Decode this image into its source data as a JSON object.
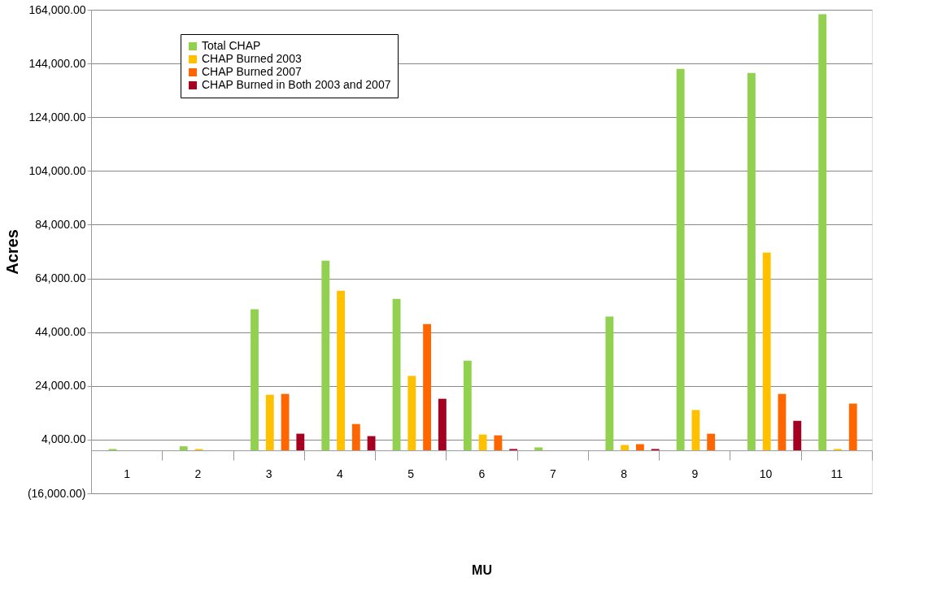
{
  "chart_data": {
    "type": "bar",
    "xlabel": "MU",
    "ylabel": "Acres",
    "categories": [
      "1",
      "2",
      "3",
      "4",
      "5",
      "6",
      "7",
      "8",
      "9",
      "10",
      "11"
    ],
    "series": [
      {
        "name": "Total CHAP",
        "color": "#92d050",
        "values": [
          500,
          1500,
          52500,
          70600,
          56400,
          33400,
          1100,
          49800,
          142000,
          140500,
          162300
        ]
      },
      {
        "name": "CHAP Burned 2003",
        "color": "#ffc000",
        "values": [
          null,
          500,
          20700,
          59400,
          27700,
          5900,
          null,
          2000,
          15000,
          73600,
          500
        ]
      },
      {
        "name": "CHAP Burned 2007",
        "color": "#ff6600",
        "values": [
          null,
          null,
          21000,
          9800,
          47000,
          5600,
          null,
          2300,
          6200,
          21000,
          17400
        ]
      },
      {
        "name": "CHAP Burned in Both 2003 and 2007",
        "color": "#a50021",
        "values": [
          null,
          null,
          6200,
          5300,
          19200,
          500,
          null,
          500,
          null,
          11000,
          null
        ]
      }
    ],
    "ylim": [
      -16000,
      164000
    ],
    "yticks": [
      {
        "value": -16000,
        "label": "(16,000.00)"
      },
      {
        "value": 4000,
        "label": "4,000.00"
      },
      {
        "value": 24000,
        "label": "24,000.00"
      },
      {
        "value": 44000,
        "label": "44,000.00"
      },
      {
        "value": 64000,
        "label": "64,000.00"
      },
      {
        "value": 84000,
        "label": "84,000.00"
      },
      {
        "value": 104000,
        "label": "104,000.00"
      },
      {
        "value": 124000,
        "label": "124,000.00"
      },
      {
        "value": 144000,
        "label": "144,000.00"
      },
      {
        "value": 164000,
        "label": "164,000.00"
      }
    ],
    "grid": "y",
    "legend": "top left"
  }
}
